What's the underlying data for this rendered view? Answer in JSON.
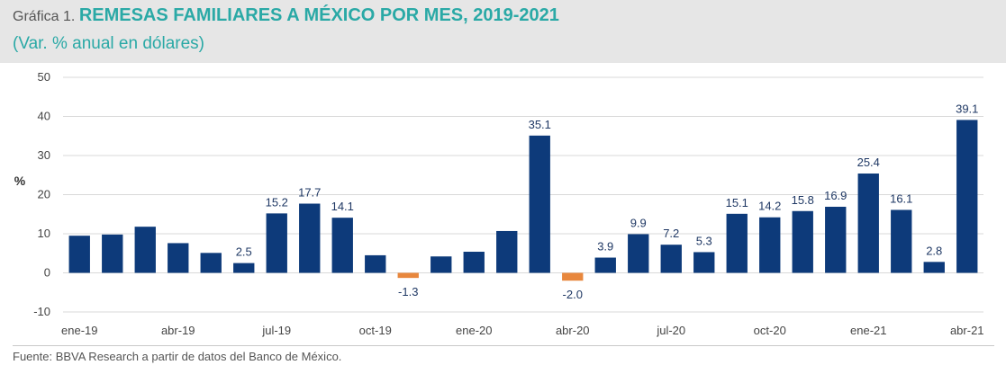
{
  "header": {
    "prefix": "Gráfica 1.",
    "title": "REMESAS FAMILIARES A MÉXICO POR MES, 2019-2021",
    "subtitle": "(Var. % anual en dólares)"
  },
  "footer": {
    "source": "Fuente: BBVA Research a partir de datos del Banco de México."
  },
  "colors": {
    "positive": "#0d3a7a",
    "negative": "#e8873d",
    "accent": "#2aa9a6",
    "header_bg": "#e6e6e6"
  },
  "chart_data": {
    "type": "bar",
    "title": "REMESAS FAMILIARES A MÉXICO POR MES, 2019-2021",
    "subtitle": "(Var. % anual en dólares)",
    "ylabel": "%",
    "ylim": [
      -10,
      50
    ],
    "yticks": [
      50,
      40,
      30,
      20,
      10,
      0,
      -10
    ],
    "grid": true,
    "categories": [
      "ene-19",
      "feb-19",
      "mar-19",
      "abr-19",
      "may-19",
      "jun-19",
      "jul-19",
      "ago-19",
      "sep-19",
      "oct-19",
      "nov-19",
      "dic-19",
      "ene-20",
      "feb-20",
      "mar-20",
      "abr-20",
      "may-20",
      "jun-20",
      "jul-20",
      "ago-20",
      "sep-20",
      "oct-20",
      "nov-20",
      "dic-20",
      "ene-21",
      "feb-21",
      "mar-21",
      "abr-21"
    ],
    "values": [
      9.5,
      9.8,
      11.8,
      7.6,
      5.1,
      2.5,
      15.2,
      17.7,
      14.1,
      4.5,
      -1.3,
      4.2,
      5.4,
      10.7,
      35.1,
      -2.0,
      3.9,
      9.9,
      7.2,
      5.3,
      15.1,
      14.2,
      15.8,
      16.9,
      25.4,
      16.1,
      2.8,
      39.1
    ],
    "data_labels": [
      {
        "index": 5,
        "text": "2.5"
      },
      {
        "index": 6,
        "text": "15.2"
      },
      {
        "index": 7,
        "text": "17.7"
      },
      {
        "index": 8,
        "text": "14.1"
      },
      {
        "index": 10,
        "text": "-1.3"
      },
      {
        "index": 14,
        "text": "35.1"
      },
      {
        "index": 15,
        "text": "-2.0"
      },
      {
        "index": 16,
        "text": "3.9"
      },
      {
        "index": 17,
        "text": "9.9"
      },
      {
        "index": 18,
        "text": "7.2"
      },
      {
        "index": 19,
        "text": "5.3"
      },
      {
        "index": 20,
        "text": "15.1"
      },
      {
        "index": 21,
        "text": "14.2"
      },
      {
        "index": 22,
        "text": "15.8"
      },
      {
        "index": 23,
        "text": "16.9"
      },
      {
        "index": 24,
        "text": "25.4"
      },
      {
        "index": 25,
        "text": "16.1"
      },
      {
        "index": 26,
        "text": "2.8"
      },
      {
        "index": 27,
        "text": "39.1"
      }
    ],
    "xtick_labels": [
      {
        "index": 0,
        "text": "ene-19"
      },
      {
        "index": 3,
        "text": "abr-19"
      },
      {
        "index": 6,
        "text": "jul-19"
      },
      {
        "index": 9,
        "text": "oct-19"
      },
      {
        "index": 12,
        "text": "ene-20"
      },
      {
        "index": 15,
        "text": "abr-20"
      },
      {
        "index": 18,
        "text": "jul-20"
      },
      {
        "index": 21,
        "text": "oct-20"
      },
      {
        "index": 24,
        "text": "ene-21"
      },
      {
        "index": 27,
        "text": "abr-21"
      }
    ]
  }
}
